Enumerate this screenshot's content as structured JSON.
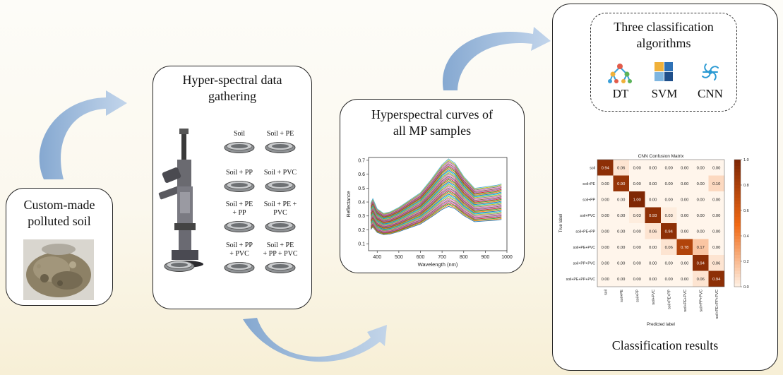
{
  "panels": {
    "soil": {
      "title_line1": "Custom-made",
      "title_line2": "polluted soil"
    },
    "gathering": {
      "title_line1": "Hyper-spectral data",
      "title_line2": "gathering",
      "sample_labels": [
        {
          "line1": "Soil",
          "line2": ""
        },
        {
          "line1": "Soil + PE",
          "line2": ""
        },
        {
          "line1": "Soil + PP",
          "line2": ""
        },
        {
          "line1": "Soil + PVC",
          "line2": ""
        },
        {
          "line1": "Soil + PE",
          "line2": "+ PP"
        },
        {
          "line1": "Soil + PE +",
          "line2": "PVC"
        },
        {
          "line1": "Soil + PP",
          "line2": "+ PVC"
        },
        {
          "line1": "Soil + PE",
          "line2": "+ PP + PVC"
        }
      ]
    },
    "curves": {
      "title_line1": "Hyperspectral curves of",
      "title_line2": "all MP samples"
    },
    "results": {
      "algorithms_title_line1": "Three classification",
      "algorithms_title_line2": "algorithms",
      "algorithms": [
        {
          "label": "DT",
          "icon": "decision-tree-icon"
        },
        {
          "label": "SVM",
          "icon": "svm-icon"
        },
        {
          "label": "CNN",
          "icon": "neural-network-icon"
        }
      ],
      "footer": "Classification results"
    }
  },
  "chart_data": [
    {
      "type": "line",
      "xlabel": "Wavelength (nm)",
      "ylabel": "Reflectance",
      "xlim": [
        360,
        1000
      ],
      "ylim": [
        0.05,
        0.72
      ],
      "xticks": [
        400,
        500,
        600,
        700,
        800,
        900,
        1000
      ],
      "yticks": [
        0.1,
        0.2,
        0.3,
        0.4,
        0.5,
        0.6,
        0.7
      ],
      "x": [
        370,
        380,
        400,
        430,
        460,
        500,
        550,
        600,
        650,
        700,
        730,
        760,
        800,
        850,
        900,
        950,
        975
      ],
      "profile": [
        0.37,
        0.4,
        0.33,
        0.3,
        0.31,
        0.34,
        0.39,
        0.44,
        0.53,
        0.63,
        0.67,
        0.64,
        0.55,
        0.47,
        0.48,
        0.49,
        0.5
      ],
      "curve_scale_range": [
        0.55,
        1.06
      ],
      "curve_count": 40,
      "curve_colors": [
        "#1f77b4",
        "#ff7f0e",
        "#2ca02c",
        "#d62728",
        "#9467bd",
        "#8c564b",
        "#e377c2",
        "#7f7f7f",
        "#bcbd22",
        "#17becf"
      ],
      "top_curve_color": "#56b4d6"
    },
    {
      "type": "heatmap",
      "title": "CNN Confusion Matrix",
      "xlabel": "Predicted label",
      "ylabel": "True label",
      "labels": [
        "soil",
        "soil+PE",
        "soil+PP",
        "soil+PVC",
        "soil+PE+PP",
        "soil+PE+PVC",
        "soil+PP+PVC",
        "soil+PE+PP+PVC"
      ],
      "matrix": [
        [
          0.94,
          0.06,
          0.0,
          0.0,
          0.0,
          0.0,
          0.0,
          0.0
        ],
        [
          0.0,
          0.9,
          0.0,
          0.0,
          0.0,
          0.0,
          0.0,
          0.1
        ],
        [
          0.0,
          0.0,
          1.0,
          0.0,
          0.0,
          0.0,
          0.0,
          0.0
        ],
        [
          0.0,
          0.0,
          0.03,
          0.93,
          0.03,
          0.0,
          0.0,
          0.0
        ],
        [
          0.0,
          0.0,
          0.0,
          0.06,
          0.94,
          0.0,
          0.0,
          0.0
        ],
        [
          0.0,
          0.0,
          0.0,
          0.0,
          0.06,
          0.78,
          0.17,
          0.0
        ],
        [
          0.0,
          0.0,
          0.0,
          0.0,
          0.0,
          0.0,
          0.94,
          0.06
        ],
        [
          0.0,
          0.0,
          0.0,
          0.0,
          0.0,
          0.0,
          0.06,
          0.94
        ]
      ],
      "colorbar_ticks": [
        0.0,
        0.2,
        0.4,
        0.6,
        0.8,
        1.0
      ],
      "colorbar_tick_labels": [
        "0.0",
        "0.2",
        "0.4",
        "0.6",
        "0.8",
        "1.0"
      ],
      "colormap": [
        "#fff5eb",
        "#7f2704"
      ]
    }
  ]
}
